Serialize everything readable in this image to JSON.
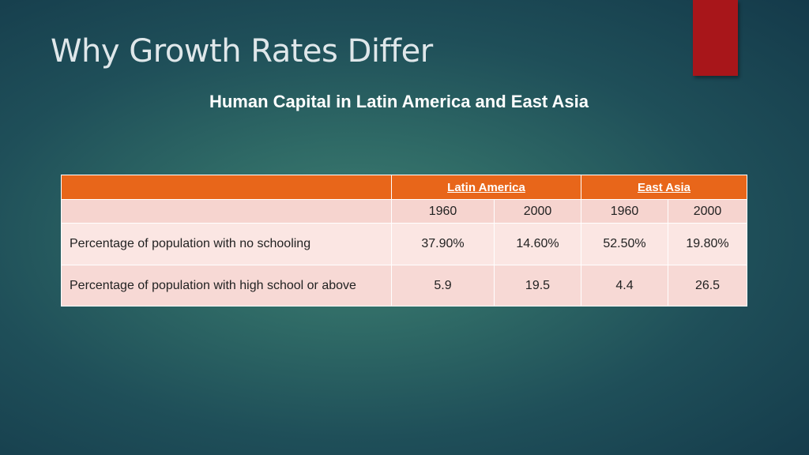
{
  "slide": {
    "title": "Why Growth Rates Differ",
    "subtitle": "Human Capital in Latin America and East Asia",
    "accent_color": "#a8161a"
  },
  "table": {
    "header_color": "#e8661a",
    "groups": [
      "Latin America",
      "East Asia"
    ],
    "years": [
      "1960",
      "2000",
      "1960",
      "2000"
    ],
    "rows": [
      {
        "label": "Percentage of population with no schooling",
        "values": [
          "37.90%",
          "14.60%",
          "52.50%",
          "19.80%"
        ]
      },
      {
        "label": "Percentage of population with high school or above",
        "values": [
          "5.9",
          "19.5",
          "4.4",
          "26.5"
        ]
      }
    ]
  }
}
